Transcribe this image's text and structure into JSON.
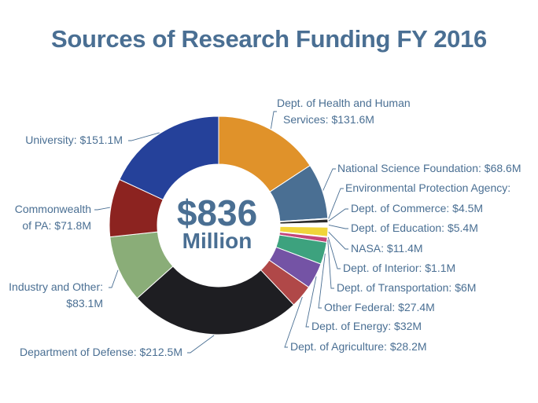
{
  "chart_data": {
    "type": "pie",
    "title": "Sources of Research Funding FY 2016",
    "center_total": "$836",
    "center_unit": "Million",
    "slices": [
      {
        "name": "Dept. of Health and Human Services",
        "value": 131.6,
        "color": "#e0922a",
        "label_lines": [
          "Dept. of Health and Human",
          "Services: $131.6M"
        ]
      },
      {
        "name": "National Science Foundation",
        "value": 68.6,
        "color": "#4a6f93",
        "label_lines": [
          "National Science Foundation: $68.6M"
        ]
      },
      {
        "name": "Environmental Protection Agency",
        "value": 1.0,
        "color": "#2e7d4f",
        "label_lines": [
          "Environmental Protection Agency:"
        ]
      },
      {
        "name": "Dept. of Commerce",
        "value": 4.5,
        "color": "#2b2b2b",
        "label_lines": [
          "Dept. of Commerce: $4.5M"
        ]
      },
      {
        "name": "Dept. of Education",
        "value": 5.4,
        "color": "#ffffff",
        "label_lines": [
          "Dept. of Education: $5.4M"
        ]
      },
      {
        "name": "NASA",
        "value": 11.4,
        "color": "#f0d43a",
        "label_lines": [
          "NASA: $11.4M"
        ]
      },
      {
        "name": "Dept. of Interior",
        "value": 1.1,
        "color": "#b86a4a",
        "label_lines": [
          "Dept. of Interior: $1.1M"
        ]
      },
      {
        "name": "Dept. of Transportation",
        "value": 6.0,
        "color": "#c3467a",
        "label_lines": [
          "Dept. of Transportation: $6M"
        ]
      },
      {
        "name": "Other Federal",
        "value": 27.4,
        "color": "#3da27e",
        "label_lines": [
          "Other Federal: $27.4M"
        ]
      },
      {
        "name": "Dept. of Energy",
        "value": 32.0,
        "color": "#7453a5",
        "label_lines": [
          "Dept. of Energy: $32M"
        ]
      },
      {
        "name": "Dept. of Agriculture",
        "value": 28.2,
        "color": "#b04848",
        "label_lines": [
          "Dept. of Agriculture: $28.2M"
        ]
      },
      {
        "name": "Department of Defense",
        "value": 212.5,
        "color": "#1e1e22",
        "label_lines": [
          "Department of Defense: $212.5M"
        ]
      },
      {
        "name": "Industry and Other",
        "value": 83.1,
        "color": "#8aad78",
        "label_lines": [
          "Industry and Other:",
          "$83.1M"
        ]
      },
      {
        "name": "Commonwealth of PA",
        "value": 71.8,
        "color": "#8c2320",
        "label_lines": [
          "Commonwealth",
          "of PA: $71.8M"
        ]
      },
      {
        "name": "University",
        "value": 151.1,
        "color": "#25419a",
        "label_lines": [
          "University: $151.1M"
        ]
      }
    ]
  }
}
